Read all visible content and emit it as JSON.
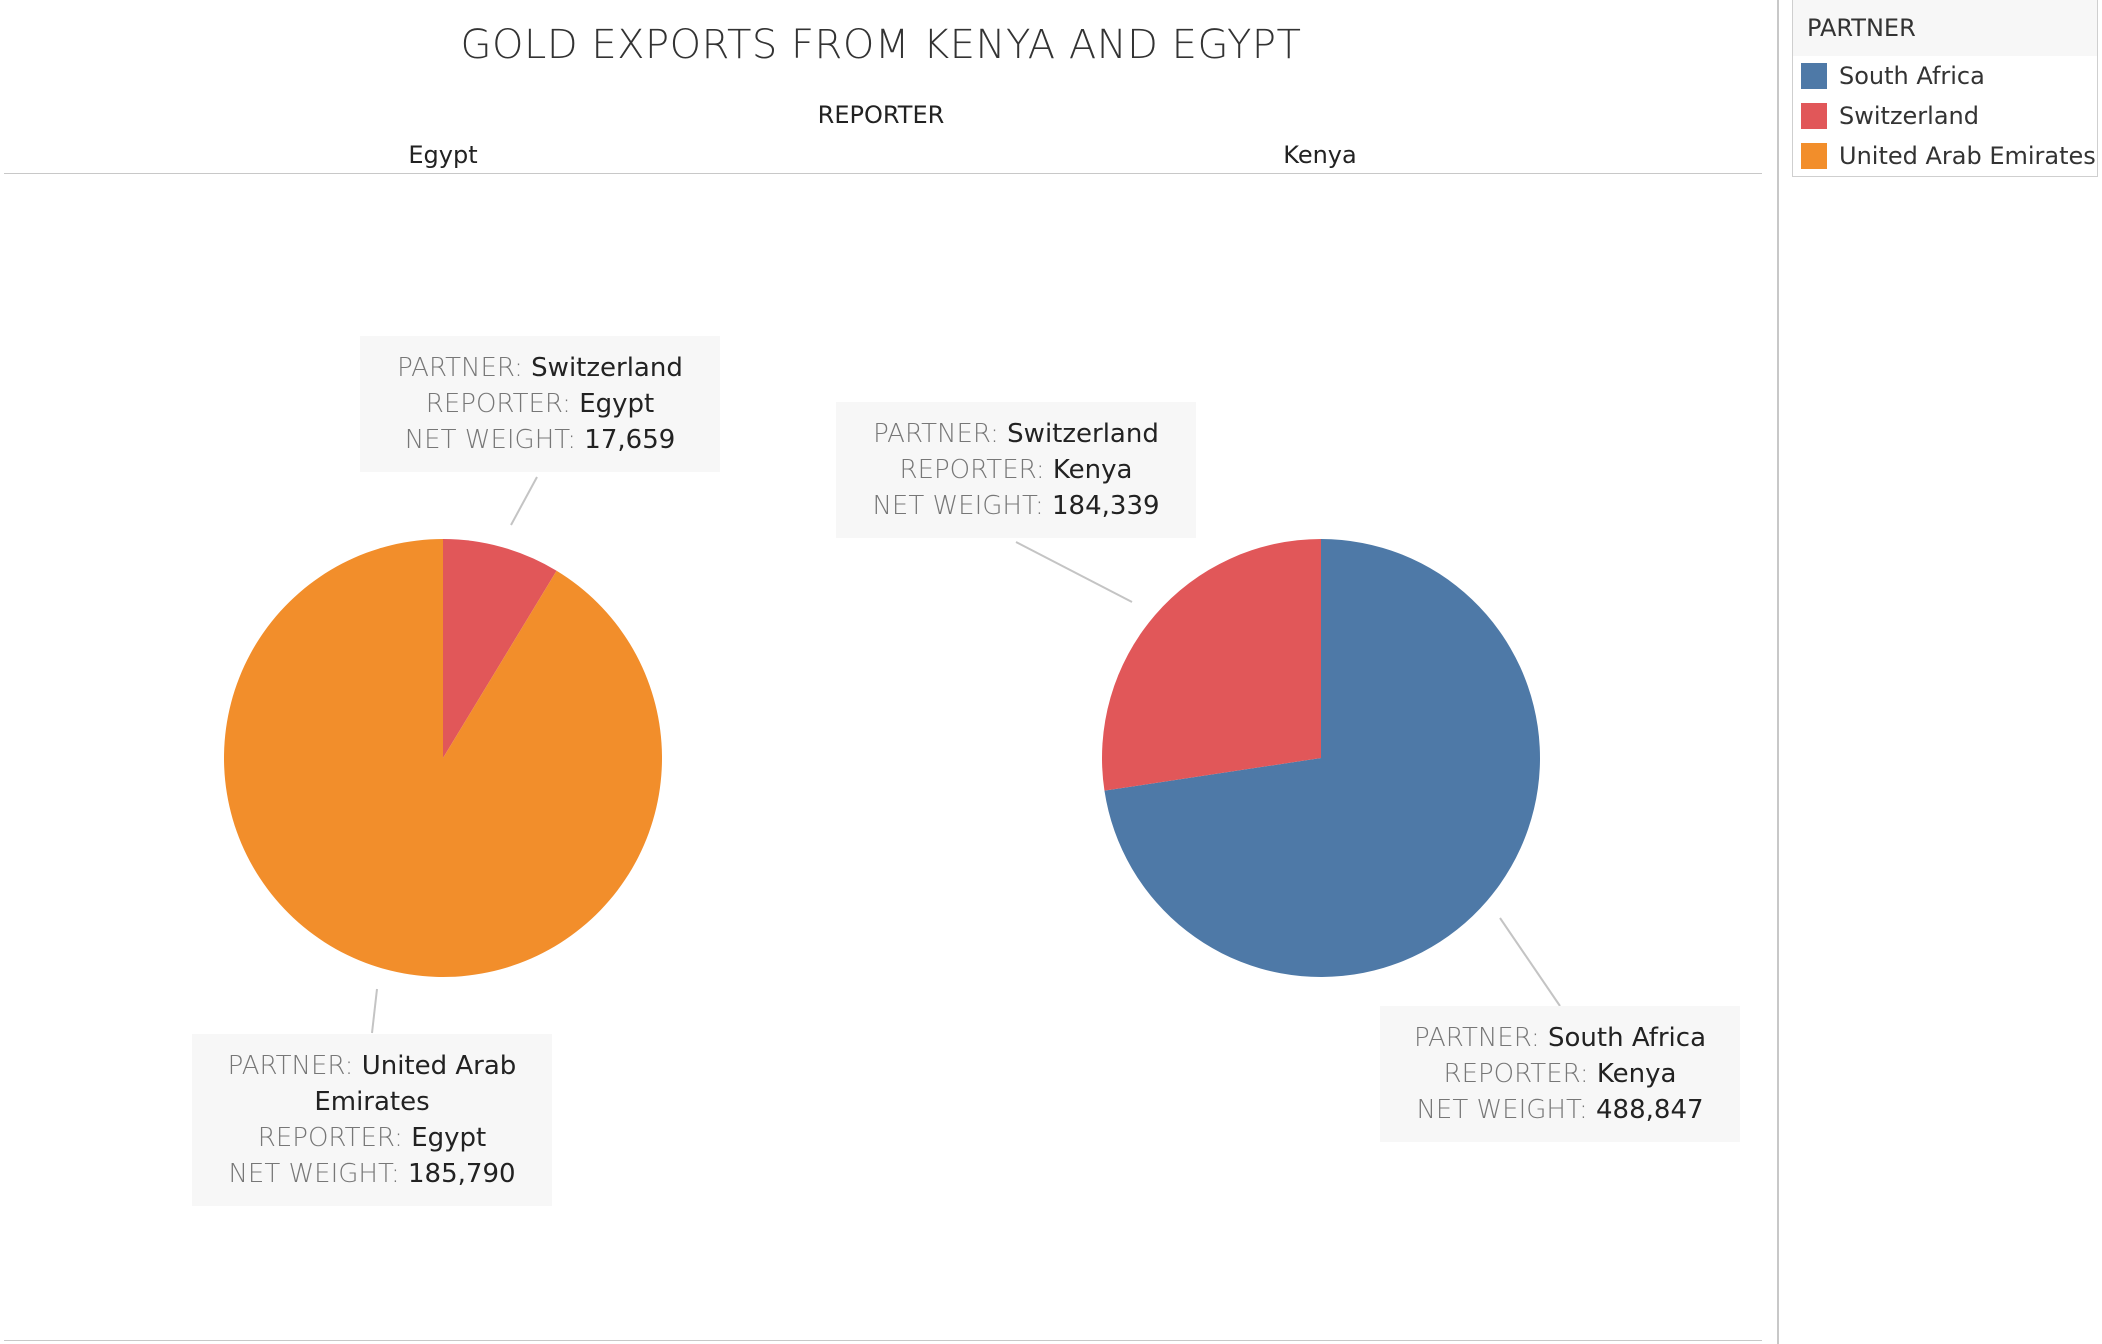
{
  "chart_data": {
    "type": "pie",
    "title": "GOLD EXPORTS FROM KENYA AND EGYPT",
    "column_header": "REPORTER",
    "legend": {
      "title": "PARTNER",
      "placement": "top-right",
      "items": [
        {
          "label": "South Africa",
          "color": "#4e79a7"
        },
        {
          "label": "Switzerland",
          "color": "#e15759"
        },
        {
          "label": "United Arab Emirates",
          "color": "#f28e2b"
        }
      ]
    },
    "panels": [
      {
        "reporter": "Egypt",
        "slices": [
          {
            "partner": "Switzerland",
            "value": 17659,
            "value_label": "17,659",
            "color": "#e15759"
          },
          {
            "partner": "United Arab Emirates",
            "value": 185790,
            "value_label": "185,790",
            "color": "#f28e2b"
          }
        ]
      },
      {
        "reporter": "Kenya",
        "slices": [
          {
            "partner": "South Africa",
            "value": 488847,
            "value_label": "488,847",
            "color": "#4e79a7"
          },
          {
            "partner": "Switzerland",
            "value": 184339,
            "value_label": "184,339",
            "color": "#e15759"
          }
        ]
      }
    ],
    "label_keys": {
      "partner": "PARTNER:",
      "reporter": "REPORTER:",
      "net_weight": "NET WEIGHT:"
    }
  }
}
